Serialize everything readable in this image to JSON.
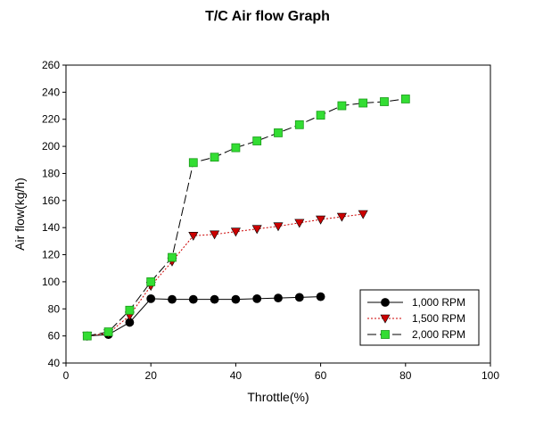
{
  "chart_data": {
    "type": "line",
    "title": "T/C Air flow Graph",
    "xlabel": "Throttle(%)",
    "ylabel": "Air flow(kg/h)",
    "xlim": [
      0,
      100
    ],
    "ylim": [
      40,
      260
    ],
    "xticks": [
      0,
      20,
      40,
      60,
      80,
      100
    ],
    "yticks": [
      40,
      60,
      80,
      100,
      120,
      140,
      160,
      180,
      200,
      220,
      240,
      260
    ],
    "grid": false,
    "legend_position": "bottom-right",
    "series": [
      {
        "name": "1,000 RPM",
        "marker": "circle",
        "color": "#000000",
        "line_style": "solid",
        "x": [
          5,
          10,
          15,
          20,
          25,
          30,
          35,
          40,
          45,
          50,
          55,
          60
        ],
        "y": [
          60,
          61,
          70,
          87.5,
          87,
          87,
          87,
          87,
          87.5,
          88,
          88.5,
          89
        ]
      },
      {
        "name": "1,500 RPM",
        "marker": "triangle-down",
        "color": "#cc0000",
        "line_style": "dotted",
        "x": [
          5,
          10,
          15,
          20,
          25,
          30,
          35,
          40,
          45,
          50,
          55,
          60,
          65,
          70
        ],
        "y": [
          60,
          62,
          75,
          97,
          115,
          134,
          135,
          137,
          139,
          141,
          143.5,
          146,
          148,
          150
        ]
      },
      {
        "name": "2,000 RPM",
        "marker": "square",
        "color": "#33dd33",
        "line_style": "dashed",
        "x": [
          5,
          10,
          15,
          20,
          25,
          30,
          35,
          40,
          45,
          50,
          55,
          60,
          65,
          70,
          75,
          80
        ],
        "y": [
          60,
          63,
          79,
          100,
          118,
          188,
          192,
          199,
          204,
          210,
          216,
          223,
          230,
          232,
          233,
          235
        ]
      }
    ]
  }
}
